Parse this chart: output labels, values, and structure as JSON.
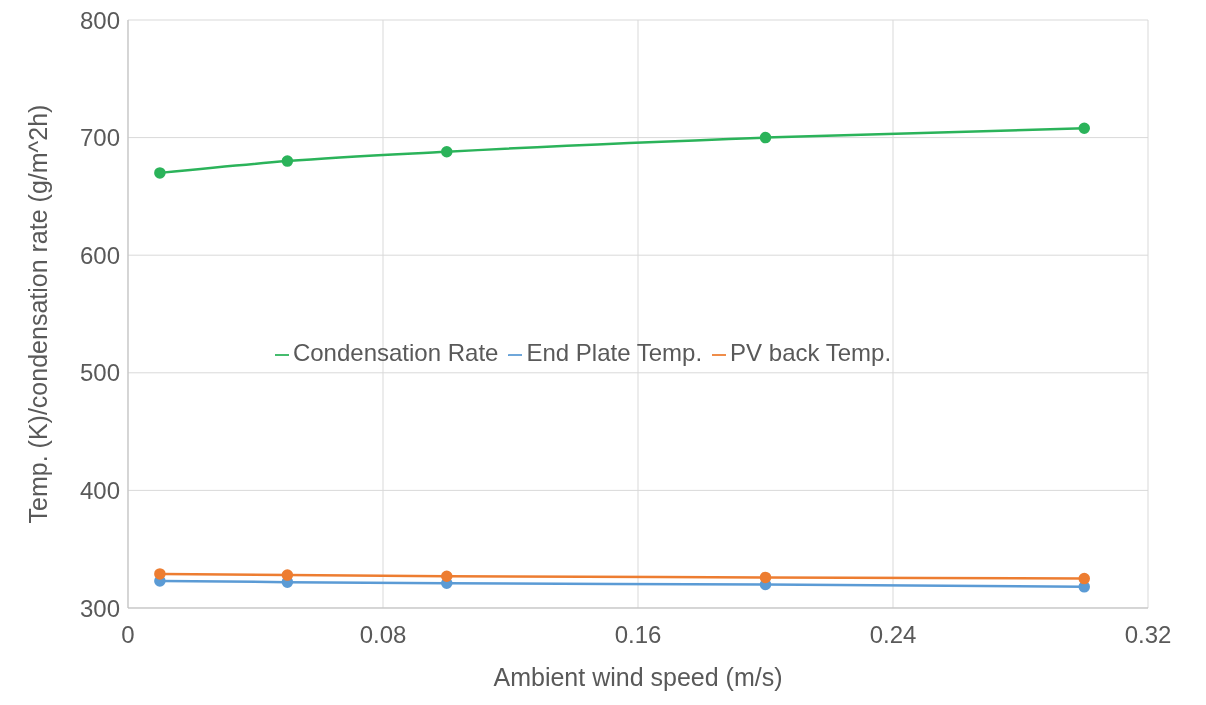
{
  "chart_data": {
    "type": "line",
    "xlabel": "Ambient wind speed (m/s)",
    "ylabel": "Temp. (K)/condensation rate (g/m^2h)",
    "x": [
      0.01,
      0.05,
      0.1,
      0.2,
      0.3
    ],
    "series": [
      {
        "name": "End Plate Temp.",
        "color": "#5b9bd5",
        "values": [
          323,
          322,
          321,
          320,
          318
        ]
      },
      {
        "name": "PV back Temp.",
        "color": "#ed7d31",
        "values": [
          329,
          328,
          327,
          326,
          325
        ]
      },
      {
        "name": "Condensation Rate",
        "color": "#2bb35a",
        "values": [
          670,
          680,
          688,
          700,
          708
        ]
      }
    ],
    "xlim": [
      0,
      0.32
    ],
    "xticks": [
      0,
      0.08,
      0.16,
      0.24,
      0.32
    ],
    "ylim": [
      300,
      800
    ],
    "yticks": [
      300,
      400,
      500,
      600,
      700,
      800
    ],
    "grid": true,
    "legend": "center",
    "marker": "circle",
    "line_style": "solid"
  }
}
